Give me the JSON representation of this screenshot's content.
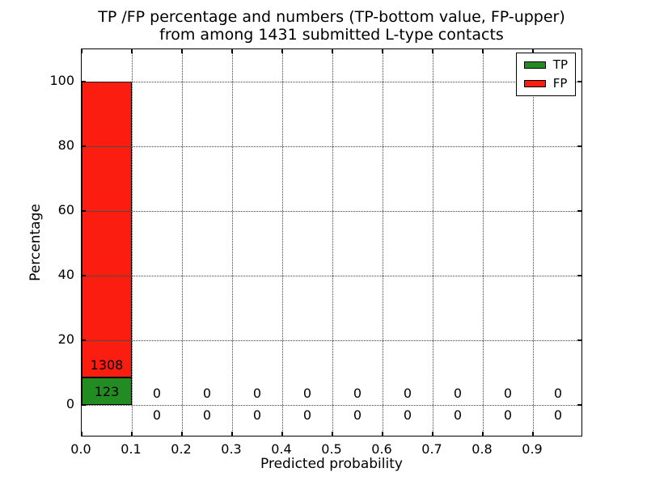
{
  "figure": {
    "background": "#ffffff",
    "text_color": "#000000"
  },
  "chart_data": {
    "type": "bar",
    "stacked": true,
    "title_lines": [
      "TP /FP percentage and numbers (TP-bottom value, FP-upper)",
      "from among 1431 submitted L-type contacts"
    ],
    "xlabel": "Predicted probability",
    "ylabel": "Percentage",
    "total_submitted": 1431,
    "xlim": [
      0.0,
      1.0
    ],
    "ylim": [
      -10,
      110
    ],
    "xticks": [
      0.0,
      0.1,
      0.2,
      0.3,
      0.4,
      0.5,
      0.6,
      0.7,
      0.8,
      0.9
    ],
    "xtick_labels": [
      "0.0",
      "0.1",
      "0.2",
      "0.3",
      "0.4",
      "0.5",
      "0.6",
      "0.7",
      "0.8",
      "0.9"
    ],
    "yticks": [
      0,
      20,
      40,
      60,
      80,
      100
    ],
    "ytick_labels": [
      "0",
      "20",
      "40",
      "60",
      "80",
      "100"
    ],
    "bin_width": 0.1,
    "grid_style": "dotted",
    "grid_on": true,
    "axes_color": "#000000",
    "series": [
      {
        "name": "TP",
        "color": "#228b22",
        "counts": [
          123,
          0,
          0,
          0,
          0,
          0,
          0,
          0,
          0,
          0
        ]
      },
      {
        "name": "FP",
        "color": "#fb1d10",
        "counts": [
          1308,
          0,
          0,
          0,
          0,
          0,
          0,
          0,
          0,
          0
        ]
      }
    ],
    "bar_label_note": "TP count shown at bottom, FP count shown above it",
    "legend": {
      "position": "upper right"
    }
  }
}
